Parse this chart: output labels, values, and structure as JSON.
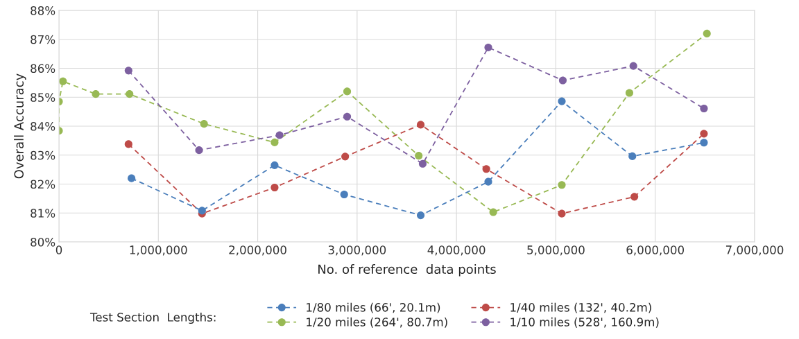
{
  "chart_data": {
    "type": "line",
    "xlabel": "No. of reference  data points",
    "ylabel": "Overall Accuracy",
    "legend_title": "Test Section  Lengths:",
    "series": [
      {
        "name": "1/80 miles (66', 20.1m)",
        "color": "#4a7ebb",
        "x": [
          730000,
          1440000,
          2170000,
          2870000,
          3640000,
          4320000,
          5060000,
          5770000,
          6490000
        ],
        "values": [
          82.2,
          81.08,
          82.65,
          81.64,
          80.92,
          82.08,
          84.86,
          82.96,
          83.43
        ]
      },
      {
        "name": "1/40 miles (132', 40.2m)",
        "color": "#be4b48",
        "x": [
          700000,
          1440000,
          2170000,
          2880000,
          3640000,
          4300000,
          5060000,
          5790000,
          6490000
        ],
        "values": [
          83.38,
          80.98,
          81.88,
          82.95,
          84.05,
          82.52,
          80.98,
          81.56,
          83.74
        ]
      },
      {
        "name": "1/20 miles (264', 80.7m)",
        "color": "#98b954",
        "x": [
          0,
          0,
          40000,
          370000,
          710000,
          1460000,
          2170000,
          2900000,
          3620000,
          4370000,
          5060000,
          5740000,
          6520000
        ],
        "values": [
          83.84,
          84.85,
          85.55,
          85.11,
          85.11,
          84.08,
          83.44,
          85.2,
          82.98,
          81.03,
          81.97,
          85.15,
          87.2
        ]
      },
      {
        "name": "1/10 miles (528', 160.9m)",
        "color": "#7d60a0",
        "x": [
          700000,
          1410000,
          2220000,
          2900000,
          3660000,
          4320000,
          5070000,
          5780000,
          6490000
        ],
        "values": [
          85.92,
          83.17,
          83.69,
          84.33,
          82.7,
          86.72,
          85.58,
          86.08,
          84.61
        ]
      }
    ],
    "xlim": [
      0,
      7000000
    ],
    "xticks": [
      0,
      {
        "value": 1000000,
        "label": "1,000,000"
      },
      {
        "value": 2000000,
        "label": "2,000,000"
      },
      {
        "value": 3000000,
        "label": "3,000,000"
      },
      {
        "value": 4000000,
        "label": "4,000,000"
      },
      {
        "value": 5000000,
        "label": "5,000,000"
      },
      {
        "value": 6000000,
        "label": "6,000,000"
      },
      {
        "value": 7000000,
        "label": "7,000,000"
      }
    ],
    "ylim": [
      80,
      88
    ],
    "yticks": [
      {
        "value": 80,
        "label": "80%"
      },
      {
        "value": 81,
        "label": "81%"
      },
      {
        "value": 82,
        "label": "82%"
      },
      {
        "value": 83,
        "label": "83%"
      },
      {
        "value": 84,
        "label": "84%"
      },
      {
        "value": 85,
        "label": "85%"
      },
      {
        "value": 86,
        "label": "86%"
      },
      {
        "value": 87,
        "label": "87%"
      },
      {
        "value": 88,
        "label": "88%"
      }
    ],
    "grid": true,
    "legend": "bottom",
    "marker": "circle",
    "line_style": "dashed"
  }
}
